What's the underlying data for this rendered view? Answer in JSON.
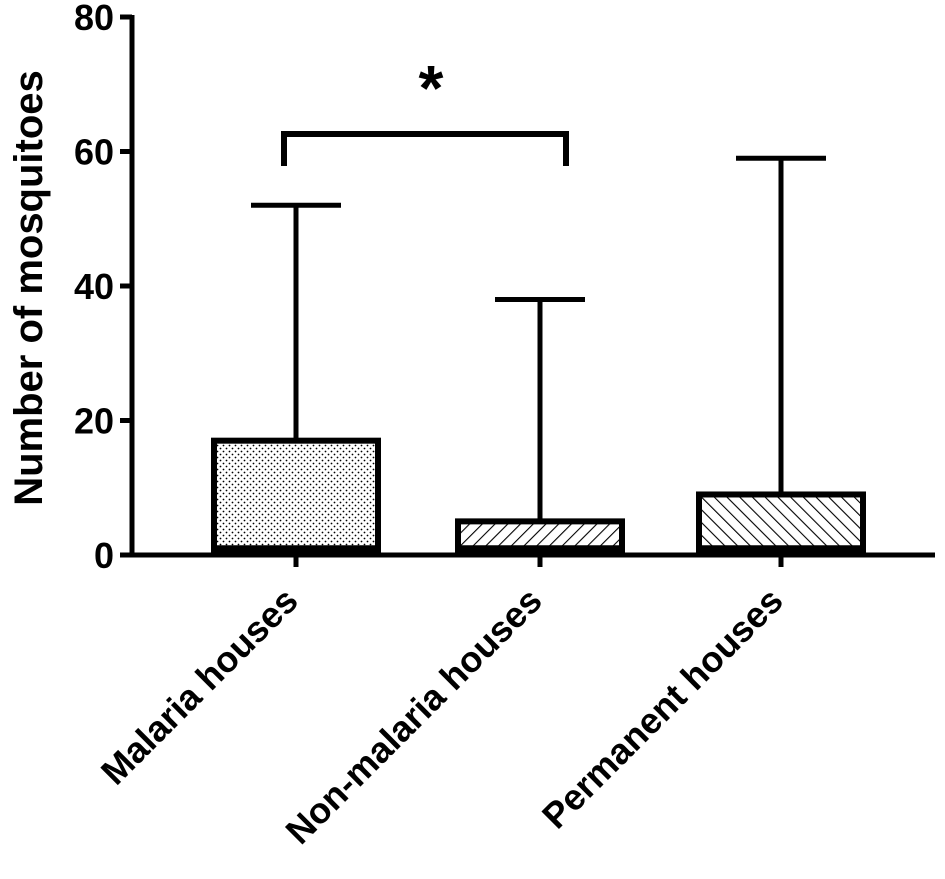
{
  "chart_data": {
    "type": "box",
    "ylabel": "Number of mosquitoes",
    "xlabel": "",
    "ylim": [
      0,
      80
    ],
    "yticks": [
      "0",
      "20",
      "40",
      "60",
      "80"
    ],
    "categories": [
      "Malaria houses",
      "Non-malaria houses",
      "Permanent houses"
    ],
    "boxes": [
      {
        "category": "Malaria houses",
        "min": 0,
        "q1": 1,
        "median": 1,
        "q3": 17,
        "max": 52,
        "pattern": "dots"
      },
      {
        "category": "Non-malaria houses",
        "min": 0,
        "q1": 1,
        "median": 1,
        "q3": 5,
        "max": 38,
        "pattern": "hatch-forward"
      },
      {
        "category": "Permanent houses",
        "min": 0,
        "q1": 1,
        "median": 1,
        "q3": 9,
        "max": 59,
        "pattern": "hatch-back"
      }
    ],
    "significance": [
      {
        "from": "Malaria houses",
        "to": "Non-malaria houses",
        "label": "*"
      }
    ],
    "grid": false,
    "legend": "none",
    "colors": {
      "stroke": "#000000",
      "background": "#ffffff"
    }
  }
}
